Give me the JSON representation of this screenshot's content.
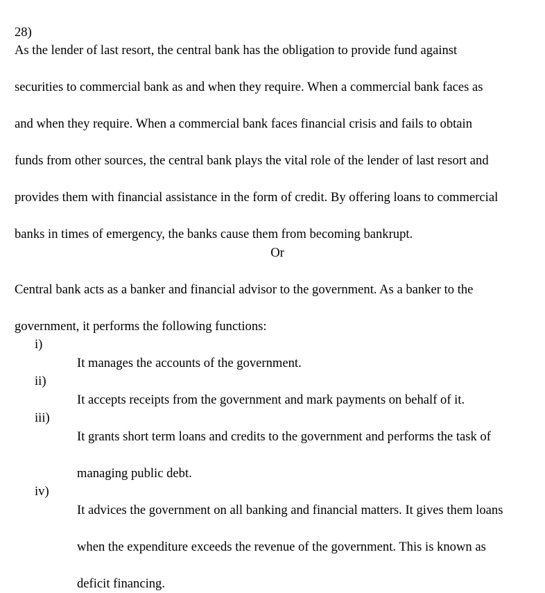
{
  "question": {
    "number": "28)",
    "answer_a_lines": [
      "As the lender of last resort, the central bank has the obligation to provide fund against",
      "securities to commercial bank as and when they require. When a commercial bank faces as",
      "and when they require. When a commercial bank faces financial crisis and fails to obtain",
      "funds from other sources, the central bank plays the vital role of the lender of last resort and",
      "provides them with financial assistance in the form of credit. By offering loans to commercial",
      "banks in times of emergency, the banks cause them from becoming bankrupt."
    ],
    "separator": "Or",
    "answer_b_intro_lines": [
      "Central bank acts as a banker and financial advisor to the government. As a banker to the",
      "government, it performs the following functions:"
    ],
    "functions": [
      {
        "num": "i)",
        "lines": [
          "It manages the accounts of the government."
        ]
      },
      {
        "num": "ii)",
        "lines": [
          "It accepts receipts from the government and mark payments on behalf of it."
        ]
      },
      {
        "num": "iii)",
        "lines": [
          "It grants short term loans and credits to the government and performs the task of",
          "managing public debt."
        ]
      },
      {
        "num": "iv)",
        "lines": [
          "It advices the government on all banking and financial matters. It gives them loans",
          "when the expenditure exceeds the revenue of the government. This is known as",
          "deficit financing."
        ]
      }
    ]
  }
}
